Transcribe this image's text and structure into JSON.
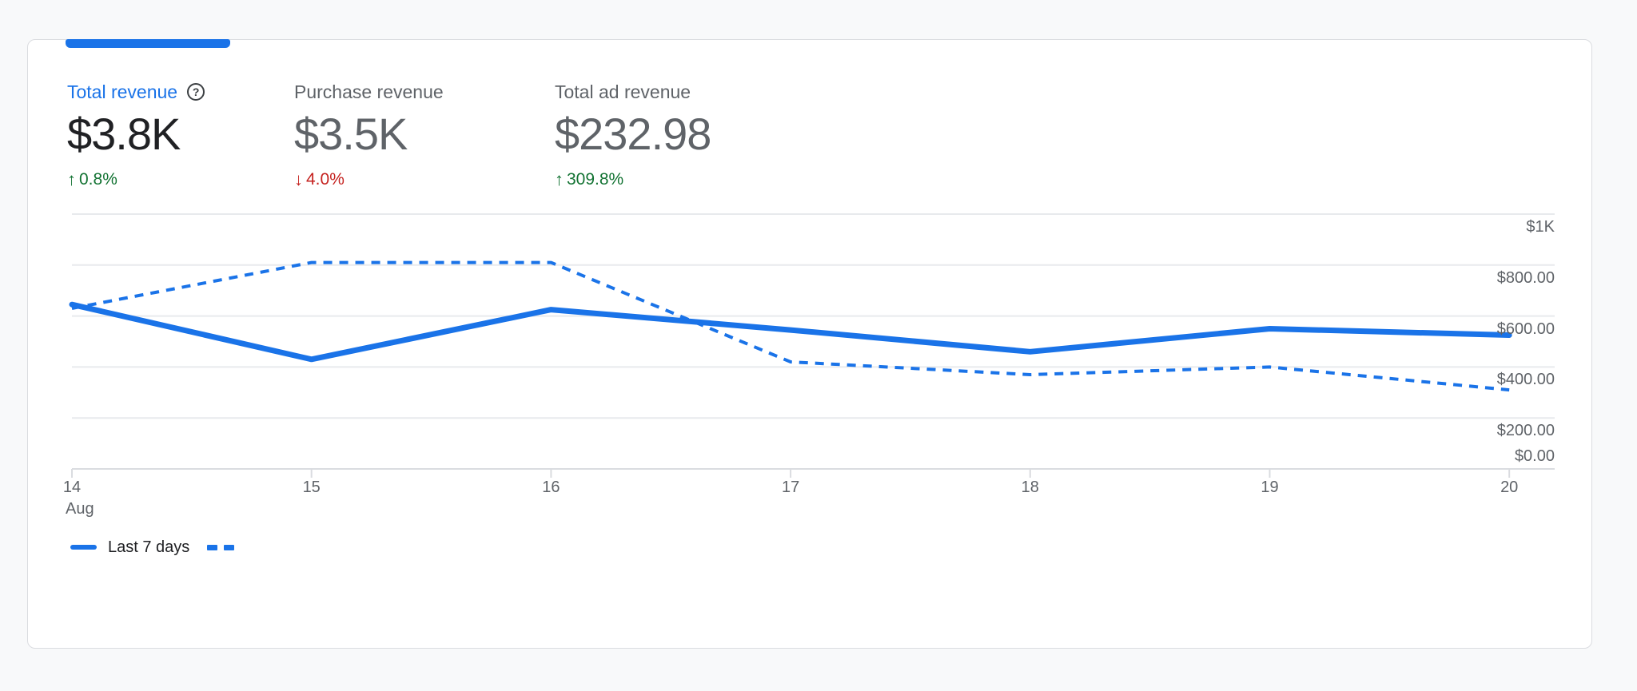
{
  "colors": {
    "accent": "#1a73e8",
    "positive": "#137333",
    "negative": "#c5221f",
    "grid": "#e8eaed",
    "axis": "#dadce0",
    "text_primary": "#202124",
    "text_secondary": "#5f6368",
    "card_background": "#ffffff",
    "page_background": "#f8f9fa"
  },
  "metrics": [
    {
      "label": "Total revenue",
      "value": "$3.8K",
      "delta": "0.8%",
      "direction": "up",
      "active": true,
      "has_help_icon": true
    },
    {
      "label": "Purchase revenue",
      "value": "$3.5K",
      "delta": "4.0%",
      "direction": "down",
      "active": false,
      "has_help_icon": false
    },
    {
      "label": "Total ad revenue",
      "value": "$232.98",
      "delta": "309.8%",
      "direction": "up",
      "active": false,
      "has_help_icon": false
    }
  ],
  "chart_data": {
    "type": "line",
    "x": [
      14,
      15,
      16,
      17,
      18,
      19,
      20
    ],
    "x_labels": [
      "14",
      "15",
      "16",
      "17",
      "18",
      "19",
      "20"
    ],
    "x_sublabel": "Aug",
    "series": [
      {
        "name": "Last 7 days",
        "style": "solid",
        "color": "#1a73e8",
        "values": [
          645,
          430,
          625,
          545,
          460,
          550,
          525
        ]
      },
      {
        "name": "",
        "style": "dashed",
        "color": "#1a73e8",
        "values": [
          630,
          810,
          810,
          420,
          370,
          400,
          310
        ]
      }
    ],
    "ylim": [
      0,
      1000
    ],
    "y_ticks": [
      {
        "value": 1000,
        "label": "$1K"
      },
      {
        "value": 800,
        "label": "$800.00"
      },
      {
        "value": 600,
        "label": "$600.00"
      },
      {
        "value": 400,
        "label": "$400.00"
      },
      {
        "value": 200,
        "label": "$200.00"
      },
      {
        "value": 0,
        "label": "$0.00"
      }
    ],
    "grid": true,
    "legend_position": "bottom-left"
  },
  "legend": {
    "solid_label": "Last 7 days",
    "dashed_label": ""
  }
}
